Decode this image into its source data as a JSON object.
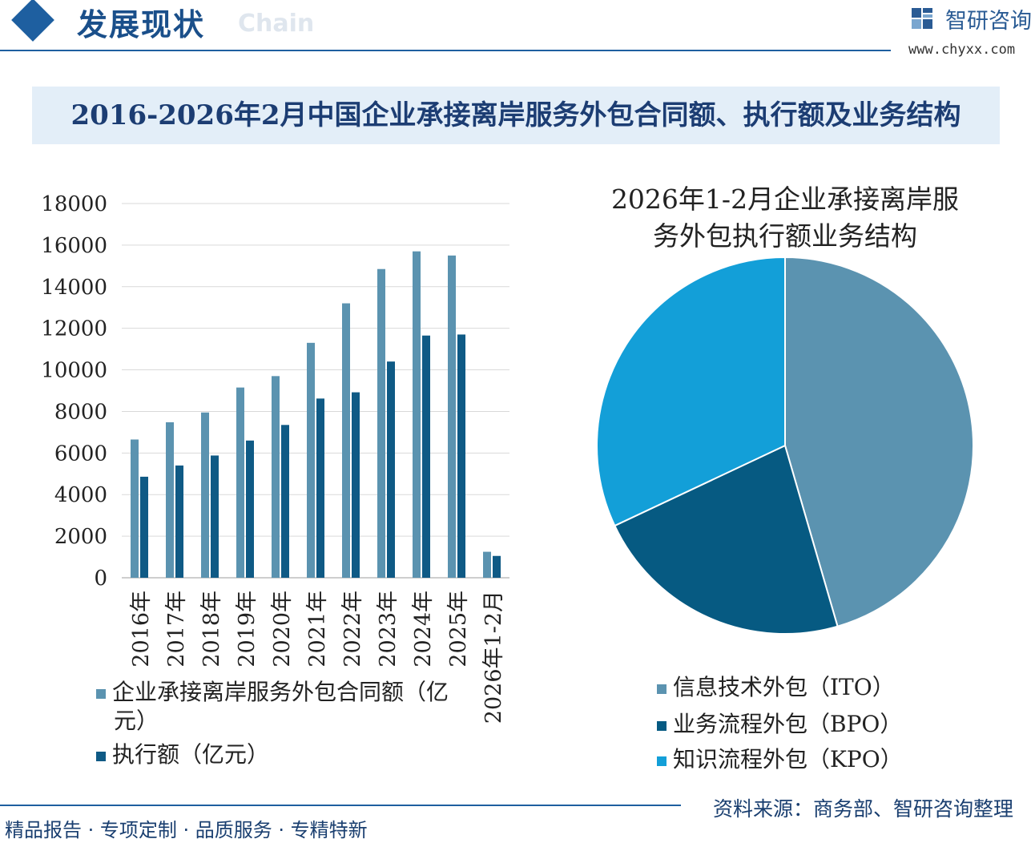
{
  "header": {
    "section_title": "发展现状",
    "ghost_text": "Chain",
    "brand_name": "智研咨询",
    "brand_url": "www.chyxx.com"
  },
  "main_title": "2016-2026年2月中国企业承接离岸服务外包合同额、执行额及业务结构",
  "chart_data": [
    {
      "type": "bar",
      "categories": [
        "2016年",
        "2017年",
        "2018年",
        "2019年",
        "2020年",
        "2021年",
        "2022年",
        "2023年",
        "2024年",
        "2025年",
        "2026年1-2月"
      ],
      "series": [
        {
          "name": "企业承接离岸服务外包合同额（亿元）",
          "values": [
            6650,
            7480,
            7950,
            9150,
            9700,
            11300,
            13200,
            14850,
            15700,
            15500,
            1250
          ],
          "color": "#5b93b0"
        },
        {
          "name": "执行额（亿元）",
          "values": [
            4860,
            5400,
            5880,
            6600,
            7350,
            8620,
            8920,
            10400,
            11650,
            11700,
            1050
          ],
          "color": "#0f5a85"
        }
      ],
      "ylim": [
        0,
        18000
      ],
      "yticks": [
        0,
        2000,
        4000,
        6000,
        8000,
        10000,
        12000,
        14000,
        16000,
        18000
      ],
      "grid": true,
      "legend": "bottom"
    },
    {
      "type": "pie",
      "title": "2026年1-2月企业承接离岸服务外包执行额业务结构",
      "labels": [
        "信息技术外包（ITO）",
        "业务流程外包（BPO）",
        "知识流程外包（KPO）"
      ],
      "values": [
        45.5,
        22.5,
        32.0
      ],
      "colors": [
        "#5b93b0",
        "#065a82",
        "#139fd8"
      ],
      "legend": "bottom"
    }
  ],
  "pie_title_lines": [
    "2026年1-2月企业承接离岸服",
    "务外包执行额业务结构"
  ],
  "bar_legend": {
    "line1": "企业承接离岸服务外包合同额（亿",
    "line2": "元）",
    "line3": "执行额（亿元）"
  },
  "footer": {
    "tagline": "精品报告 · 专项定制 · 品质服务 · 专精特新",
    "source": "资料来源：商务部、智研咨询整理"
  }
}
